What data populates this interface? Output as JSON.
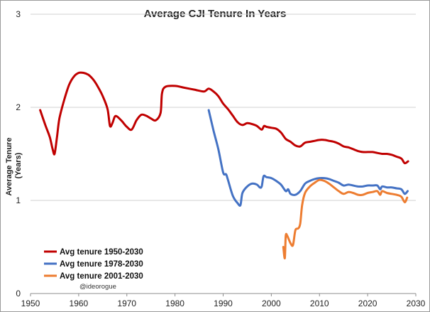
{
  "chart_data": {
    "type": "line",
    "title": "Average CJI Tenure In Years",
    "xlabel": "",
    "ylabel": "Average Tenure (Years)",
    "ylabel_lines": [
      "Average Tenure",
      "(Years)"
    ],
    "xlim": [
      1950,
      2030
    ],
    "ylim": [
      0,
      3
    ],
    "xticks": [
      1950,
      1960,
      1970,
      1980,
      1990,
      2000,
      2010,
      2020,
      2030
    ],
    "yticks": [
      0,
      1,
      2,
      3
    ],
    "grid": "horizontal",
    "legend_position": "bottom-left",
    "annotation": "@ideorogue",
    "series": [
      {
        "name": "Avg tenure 1950-2030",
        "color": "#c00000",
        "x": [
          1952,
          1953,
          1954,
          1954.6,
          1955,
          1955.5,
          1956,
          1957,
          1958,
          1959,
          1960,
          1961,
          1962,
          1963,
          1964,
          1965,
          1966,
          1966.5,
          1967,
          1967.5,
          1968,
          1969,
          1970,
          1971,
          1972,
          1973,
          1974,
          1975,
          1976,
          1977,
          1977.3,
          1978,
          1980,
          1982,
          1984,
          1986,
          1987,
          1988,
          1989,
          1990,
          1991,
          1992,
          1993,
          1994,
          1995,
          1996,
          1997,
          1998,
          1998.5,
          1999,
          2000,
          2001,
          2002,
          2003,
          2004,
          2005,
          2006,
          2007,
          2008,
          2009,
          2010,
          2011,
          2012,
          2013,
          2014,
          2015,
          2016,
          2017,
          2018,
          2019,
          2020,
          2021,
          2022,
          2023,
          2024,
          2025,
          2026,
          2027,
          2027.7,
          2028.4
        ],
        "values": [
          1.97,
          1.82,
          1.68,
          1.55,
          1.5,
          1.68,
          1.88,
          2.08,
          2.24,
          2.33,
          2.37,
          2.37,
          2.35,
          2.3,
          2.22,
          2.12,
          1.98,
          1.8,
          1.83,
          1.9,
          1.9,
          1.85,
          1.79,
          1.76,
          1.86,
          1.92,
          1.91,
          1.88,
          1.86,
          1.94,
          2.15,
          2.22,
          2.23,
          2.21,
          2.19,
          2.17,
          2.2,
          2.17,
          2.12,
          2.04,
          1.98,
          1.91,
          1.84,
          1.81,
          1.83,
          1.82,
          1.8,
          1.76,
          1.8,
          1.79,
          1.78,
          1.77,
          1.73,
          1.66,
          1.63,
          1.59,
          1.58,
          1.62,
          1.63,
          1.64,
          1.65,
          1.65,
          1.64,
          1.63,
          1.61,
          1.58,
          1.57,
          1.55,
          1.53,
          1.52,
          1.52,
          1.52,
          1.51,
          1.5,
          1.5,
          1.49,
          1.47,
          1.45,
          1.4,
          1.42
        ]
      },
      {
        "name": "Avg tenure 1978-2030",
        "color": "#4472c4",
        "x": [
          1987,
          1988,
          1989,
          1990,
          1990.6,
          1991,
          1992,
          1993,
          1993.6,
          1994,
          1995,
          1996,
          1997,
          1997.6,
          1998,
          1998.4,
          1999,
          2000,
          2001,
          2002,
          2003,
          2003.5,
          2004,
          2005,
          2006,
          2007,
          2008,
          2009,
          2010,
          2011,
          2012,
          2013,
          2014,
          2015,
          2016,
          2017,
          2018,
          2019,
          2020,
          2021,
          2022,
          2022.6,
          2023,
          2024,
          2025,
          2026,
          2027,
          2027.7,
          2028.3
        ],
        "values": [
          1.97,
          1.75,
          1.55,
          1.3,
          1.28,
          1.22,
          1.05,
          0.97,
          0.95,
          1.08,
          1.15,
          1.18,
          1.17,
          1.14,
          1.15,
          1.26,
          1.25,
          1.24,
          1.21,
          1.17,
          1.1,
          1.12,
          1.07,
          1.06,
          1.1,
          1.18,
          1.21,
          1.23,
          1.24,
          1.24,
          1.23,
          1.21,
          1.19,
          1.16,
          1.17,
          1.16,
          1.15,
          1.15,
          1.16,
          1.16,
          1.16,
          1.12,
          1.15,
          1.14,
          1.14,
          1.13,
          1.12,
          1.07,
          1.1
        ]
      },
      {
        "name": "Avg tenure 2001-2030",
        "color": "#ed7d31",
        "x": [
          2002.5,
          2002.8,
          2003,
          2003.3,
          2004,
          2004.5,
          2005,
          2005.6,
          2006,
          2006.4,
          2007,
          2008,
          2009,
          2010,
          2011,
          2012,
          2013,
          2014,
          2015,
          2016,
          2017,
          2018,
          2019,
          2020,
          2021,
          2022,
          2022.6,
          2023,
          2024,
          2025,
          2026,
          2027,
          2027.7,
          2028.2
        ],
        "values": [
          0.5,
          0.38,
          0.62,
          0.62,
          0.54,
          0.52,
          0.68,
          0.7,
          0.75,
          0.95,
          1.08,
          1.15,
          1.19,
          1.22,
          1.21,
          1.18,
          1.14,
          1.1,
          1.07,
          1.09,
          1.08,
          1.06,
          1.06,
          1.08,
          1.09,
          1.1,
          1.06,
          1.1,
          1.08,
          1.07,
          1.06,
          1.04,
          0.98,
          1.03
        ]
      }
    ]
  }
}
